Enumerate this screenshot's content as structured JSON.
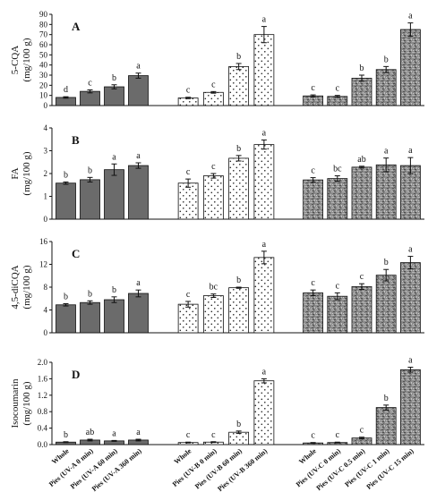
{
  "chart_data": [
    {
      "panel": "A",
      "type": "bar",
      "ylabel": "5-CQA\n(mg/100 g)",
      "ylim": [
        0,
        90
      ],
      "yticks": [
        "0",
        "10",
        "20",
        "30",
        "40",
        "50",
        "60",
        "70",
        "80",
        "90"
      ],
      "groups": [
        {
          "treatment": "UV-A",
          "fill": "solid",
          "categories": [
            "Whole",
            "Pies (UV-A 0 min)",
            "Pies (UV-A 60 min)",
            "Pies (UV-A 360 min)"
          ],
          "values": [
            8,
            14,
            18.5,
            29.5
          ],
          "errors": [
            0.7,
            1.5,
            2,
            2.5
          ],
          "letters": [
            "d",
            "c",
            "b",
            "a"
          ]
        },
        {
          "treatment": "UV-B",
          "fill": "dotted",
          "categories": [
            "Whole",
            "Pies (UV-B 0 min)",
            "Pies (UV-B 60 min)",
            "Pies (UV-B 360 min)"
          ],
          "values": [
            7.5,
            13,
            38.5,
            70
          ],
          "errors": [
            0.7,
            0.8,
            3,
            8
          ],
          "letters": [
            "c",
            "c",
            "b",
            "a"
          ]
        },
        {
          "treatment": "UV-C",
          "fill": "granite",
          "categories": [
            "Whole",
            "Pies (UV-C 0 min)",
            "Pies (UV-C 0.5 min)",
            "Pies (UV-C 1 min)",
            "Pies (UV-C 15 min)"
          ],
          "values": [
            9.5,
            9,
            27,
            35.5,
            75
          ],
          "errors": [
            1,
            1,
            3,
            3,
            6.5
          ],
          "letters": [
            "c",
            "c",
            "b",
            "b",
            "a"
          ]
        }
      ]
    },
    {
      "panel": "B",
      "type": "bar",
      "ylabel": "FA\n(mg/100 g)",
      "ylim": [
        0,
        4
      ],
      "yticks": [
        "0",
        "1",
        "2",
        "3",
        "4"
      ],
      "groups": [
        {
          "treatment": "UV-A",
          "fill": "solid",
          "categories": [
            "Whole",
            "Pies (UV-A 0 min)",
            "Pies (UV-A 60 min)",
            "Pies (UV-A 360 min)"
          ],
          "values": [
            1.58,
            1.73,
            2.17,
            2.35
          ],
          "errors": [
            0.05,
            0.1,
            0.25,
            0.12
          ],
          "letters": [
            "b",
            "b",
            "a",
            "a"
          ]
        },
        {
          "treatment": "UV-B",
          "fill": "dotted",
          "categories": [
            "Whole",
            "Pies (UV-B 0 min)",
            "Pies (UV-B 60 min)",
            "Pies (UV-B 360 min)"
          ],
          "values": [
            1.58,
            1.9,
            2.67,
            3.27
          ],
          "errors": [
            0.18,
            0.1,
            0.12,
            0.2
          ],
          "letters": [
            "c",
            "c",
            "b",
            "a"
          ]
        },
        {
          "treatment": "UV-C",
          "fill": "granite",
          "categories": [
            "Whole",
            "Pies (UV-C 0 min)",
            "Pies (UV-C 0.5 min)",
            "Pies (UV-C 1 min)",
            "Pies (UV-C 15 min)"
          ],
          "values": [
            1.72,
            1.78,
            2.28,
            2.38,
            2.35
          ],
          "errors": [
            0.1,
            0.12,
            0.04,
            0.3,
            0.35
          ],
          "letters": [
            "c",
            "bc",
            "ab",
            "a",
            "a"
          ]
        }
      ]
    },
    {
      "panel": "C",
      "type": "bar",
      "ylabel": "4,5-diCQA\n(mg/100 g)",
      "ylim": [
        0,
        16
      ],
      "yticks": [
        "0",
        "4",
        "8",
        "12",
        "16"
      ],
      "groups": [
        {
          "treatment": "UV-A",
          "fill": "solid",
          "categories": [
            "Whole",
            "Pies (UV-A 0 min)",
            "Pies (UV-A 60 min)",
            "Pies (UV-A 360 min)"
          ],
          "values": [
            4.9,
            5.3,
            5.8,
            6.9
          ],
          "errors": [
            0.2,
            0.3,
            0.5,
            0.6
          ],
          "letters": [
            "b",
            "b",
            "b",
            "a"
          ]
        },
        {
          "treatment": "UV-B",
          "fill": "dotted",
          "categories": [
            "Whole",
            "Pies (UV-B 0 min)",
            "Pies (UV-B 60 min)",
            "Pies (UV-B 360 min)"
          ],
          "values": [
            5,
            6.5,
            7.9,
            13.2
          ],
          "errors": [
            0.5,
            0.3,
            0.1,
            1.1
          ],
          "letters": [
            "c",
            "bc",
            "b",
            "a"
          ]
        },
        {
          "treatment": "UV-C",
          "fill": "granite",
          "categories": [
            "Whole",
            "Pies (UV-C 0 min)",
            "Pies (UV-C 0.5 min)",
            "Pies (UV-C 1 min)",
            "Pies (UV-C 15 min)"
          ],
          "values": [
            7,
            6.4,
            8.1,
            10.1,
            12.3
          ],
          "errors": [
            0.5,
            0.6,
            0.5,
            1,
            1.1
          ],
          "letters": [
            "c",
            "c",
            "c",
            "b",
            "a"
          ]
        }
      ]
    },
    {
      "panel": "D",
      "type": "bar",
      "ylabel": "Isocoumarin\n(mg/100 g)",
      "ylim": [
        0,
        2.0
      ],
      "yticks": [
        "0.0",
        "0.4",
        "0.8",
        "1.2",
        "1.6",
        "2.0"
      ],
      "groups": [
        {
          "treatment": "UV-A",
          "fill": "solid",
          "categories": [
            "Whole",
            "Pies (UV-A 0 min)",
            "Pies (UV-A 60 min)",
            "Pies (UV-A 360 min)"
          ],
          "values": [
            0.06,
            0.11,
            0.09,
            0.11
          ],
          "errors": [
            0.01,
            0.02,
            0.01,
            0.02
          ],
          "letters": [
            "b",
            "ab",
            "a",
            "a"
          ]
        },
        {
          "treatment": "UV-B",
          "fill": "dotted",
          "categories": [
            "Whole",
            "Pies (UV-B 0 min)",
            "Pies (UV-B 60 min)",
            "Pies (UV-B 360 min)"
          ],
          "values": [
            0.05,
            0.06,
            0.3,
            1.55
          ],
          "errors": [
            0.01,
            0.01,
            0.03,
            0.05
          ],
          "letters": [
            "c",
            "c",
            "b",
            "a"
          ]
        },
        {
          "treatment": "UV-C",
          "fill": "granite",
          "categories": [
            "Whole",
            "Pies (UV-C 0 min)",
            "Pies (UV-C 0.5 min)",
            "Pies (UV-C 1 min)",
            "Pies (UV-C 15 min)"
          ],
          "values": [
            0.04,
            0.05,
            0.16,
            0.9,
            1.82
          ],
          "errors": [
            0.01,
            0.01,
            0.02,
            0.06,
            0.06
          ],
          "letters": [
            "c",
            "c",
            "c",
            "b",
            "a"
          ]
        }
      ]
    }
  ],
  "colors": {
    "solid_bar": "#6b6b6b",
    "dotted_bar_bg": "#ffffff",
    "dotted_bar_dot": "#222222",
    "granite_bar_base": "#8a8a8a",
    "axis": "#111111"
  }
}
